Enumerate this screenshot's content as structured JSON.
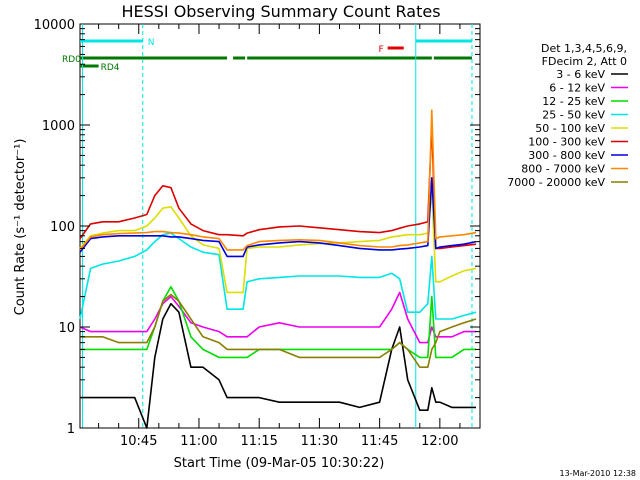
{
  "chart_data": {
    "type": "line",
    "title": "HESSI Observing Summary Count Rates",
    "xlabel": "Start Time (09-Mar-05 10:30:22)",
    "ylabel": "Count Rate (s⁻¹ detector⁻¹)",
    "y_scale": "log",
    "ylim": [
      1,
      10000
    ],
    "xlim": [
      "10:30:22",
      "12:10:00"
    ],
    "x_ticks": [
      "10:45",
      "11:00",
      "11:15",
      "11:30",
      "11:45",
      "12:00"
    ],
    "y_ticks": [
      "1",
      "10",
      "100",
      "1000",
      "10000"
    ],
    "grid": false,
    "legend_position": "right",
    "legend_header": [
      "Det 1,3,4,5,6,9,",
      "FDecim 2, Att 0"
    ],
    "footer_date": "13-Mar-2010 12:38",
    "flags": [
      {
        "label": "N",
        "color": "#00e5e5",
        "intervals": [
          [
            "10:30:22",
            "10:46:00"
          ],
          [
            "11:54:00",
            "12:08:00"
          ]
        ]
      },
      {
        "label": "F",
        "color": "#e00000",
        "intervals": [
          [
            "11:47:00",
            "11:51:00"
          ]
        ]
      },
      {
        "label": "RD0",
        "color": "#007700",
        "intervals": [
          [
            "10:30:22",
            "11:07:00"
          ],
          [
            "11:08:30",
            "11:11:30"
          ],
          [
            "11:12:00",
            "11:58:00"
          ],
          [
            "11:58:30",
            "12:08:00"
          ]
        ]
      },
      {
        "label": "RD4",
        "color": "#007700",
        "intervals": [
          [
            "10:30:22",
            "10:35:00"
          ]
        ]
      }
    ],
    "vlines": [
      {
        "time": "10:31:00",
        "color": "#00e5e5",
        "style": "solid"
      },
      {
        "time": "10:46:00",
        "color": "#00e5e5",
        "style": "dashed"
      },
      {
        "time": "11:54:00",
        "color": "#00e5e5",
        "style": "solid"
      },
      {
        "time": "12:08:00",
        "color": "#00e5e5",
        "style": "dashed"
      }
    ],
    "x": [
      "10:30:22",
      "10:33:00",
      "10:36:00",
      "10:40:00",
      "10:44:00",
      "10:47:00",
      "10:49:00",
      "10:51:00",
      "10:53:00",
      "10:55:00",
      "10:58:00",
      "11:01:00",
      "11:05:00",
      "11:07:00",
      "11:11:00",
      "11:12:00",
      "11:15:00",
      "11:20:00",
      "11:25:00",
      "11:30:00",
      "11:35:00",
      "11:40:00",
      "11:45:00",
      "11:48:00",
      "11:50:00",
      "11:52:00",
      "11:55:00",
      "11:57:00",
      "11:58:00",
      "11:59:00",
      "12:00:00",
      "12:03:00",
      "12:06:00",
      "12:09:00"
    ],
    "series": [
      {
        "name": "3 - 6 keV",
        "color": "#000000",
        "values": [
          2,
          2,
          2,
          2,
          2,
          1,
          5,
          12,
          17,
          14,
          4,
          4,
          3,
          2,
          2,
          2,
          2,
          1.8,
          1.8,
          1.8,
          1.8,
          1.6,
          1.8,
          6,
          10,
          3,
          1.5,
          1.5,
          2.5,
          1.8,
          1.8,
          1.6,
          1.6,
          1.6
        ]
      },
      {
        "name": "6 - 12 keV",
        "color": "#ee00ee",
        "values": [
          10,
          9,
          9,
          9,
          9,
          9,
          12,
          17,
          20,
          16,
          11,
          10,
          9,
          8,
          8,
          8,
          10,
          11,
          10,
          10,
          10,
          10,
          10,
          15,
          22,
          12,
          7,
          7,
          10,
          8,
          8,
          8,
          9,
          9
        ]
      },
      {
        "name": "12 - 25 keV",
        "color": "#00dd00",
        "values": [
          6,
          6,
          6,
          6,
          6,
          6,
          10,
          18,
          25,
          18,
          8,
          6,
          5,
          5,
          5,
          5,
          6,
          6,
          6,
          6,
          6,
          6,
          6,
          6,
          7,
          6,
          5,
          5,
          20,
          5,
          5,
          5,
          6,
          6
        ]
      },
      {
        "name": "25 - 50 keV",
        "color": "#00e5e5",
        "values": [
          12,
          38,
          42,
          45,
          50,
          58,
          70,
          82,
          85,
          75,
          62,
          55,
          52,
          15,
          15,
          28,
          30,
          31,
          32,
          32,
          32,
          31,
          31,
          34,
          30,
          14,
          14,
          17,
          50,
          12,
          12,
          12,
          13,
          14
        ]
      },
      {
        "name": "50 - 100 keV",
        "color": "#dddd00",
        "values": [
          60,
          80,
          85,
          90,
          90,
          100,
          120,
          150,
          155,
          120,
          80,
          65,
          60,
          22,
          22,
          60,
          62,
          62,
          65,
          67,
          68,
          70,
          72,
          78,
          80,
          82,
          82,
          85,
          220,
          28,
          28,
          32,
          36,
          38
        ]
      },
      {
        "name": "100 - 300 keV",
        "color": "#dd0000",
        "values": [
          75,
          105,
          110,
          110,
          120,
          130,
          200,
          250,
          240,
          150,
          105,
          90,
          82,
          82,
          80,
          85,
          92,
          98,
          100,
          96,
          92,
          88,
          86,
          90,
          95,
          100,
          105,
          110,
          1000,
          60,
          60,
          62,
          64,
          66
        ]
      },
      {
        "name": "300 - 800 keV",
        "color": "#0000dd",
        "values": [
          55,
          75,
          78,
          80,
          80,
          80,
          80,
          80,
          78,
          78,
          75,
          72,
          70,
          50,
          50,
          62,
          65,
          68,
          70,
          68,
          64,
          60,
          58,
          58,
          59,
          60,
          62,
          64,
          300,
          60,
          62,
          64,
          66,
          70
        ]
      },
      {
        "name": "800 - 7000 keV",
        "color": "#ff8800",
        "values": [
          58,
          78,
          82,
          84,
          85,
          86,
          88,
          88,
          86,
          85,
          82,
          78,
          75,
          58,
          58,
          64,
          70,
          72,
          73,
          72,
          68,
          64,
          62,
          62,
          64,
          65,
          68,
          70,
          1400,
          75,
          78,
          80,
          82,
          86
        ]
      },
      {
        "name": "7000 - 20000 keV",
        "color": "#8b7d00",
        "values": [
          8,
          8,
          8,
          7,
          7,
          7,
          10,
          18,
          21,
          18,
          12,
          8,
          7,
          6,
          6,
          6,
          6,
          6,
          5,
          5,
          5,
          5,
          5,
          6,
          7,
          6,
          4,
          4,
          6,
          7,
          9,
          10,
          11,
          12
        ]
      }
    ]
  }
}
